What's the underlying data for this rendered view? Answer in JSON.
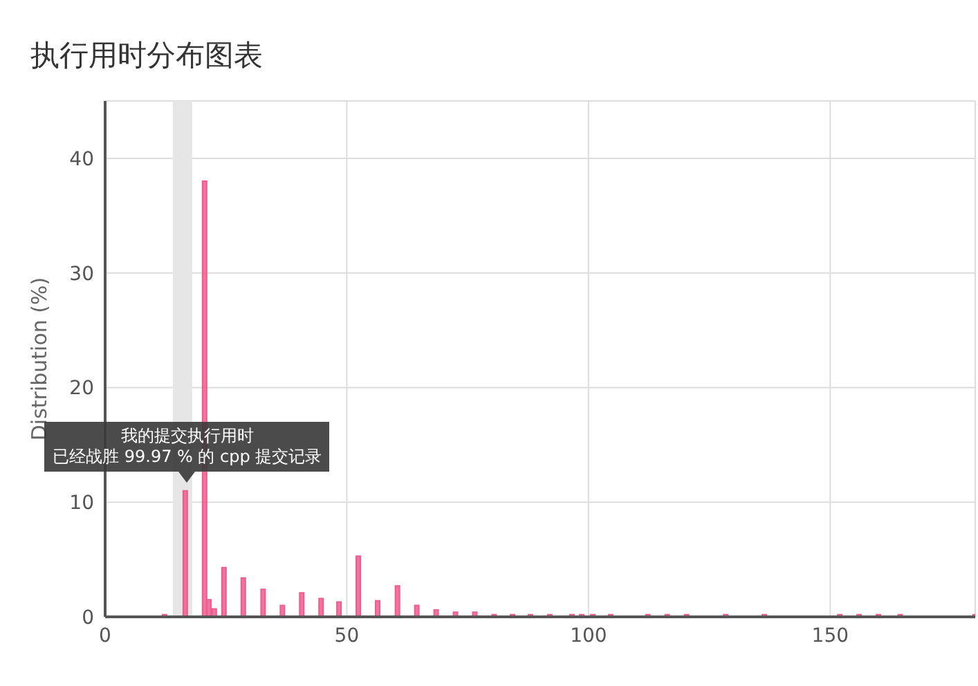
{
  "chart_data": {
    "type": "bar",
    "title": "执行用时分布图表",
    "ylabel": "Distribution (%)",
    "x": [
      12.3,
      16.6,
      20.6,
      21.5,
      22.6,
      24.6,
      28.6,
      32.7,
      36.7,
      40.7,
      44.7,
      48.4,
      52.4,
      56.4,
      60.5,
      64.5,
      68.5,
      72.5,
      76.5,
      80.5,
      84.3,
      88,
      92,
      96.6,
      98.6,
      100.9,
      104.6,
      112.3,
      116.3,
      120.3,
      128.4,
      136.4,
      152,
      156,
      160,
      164.5,
      180
    ],
    "values": [
      0.2,
      11,
      38,
      1.5,
      0.7,
      4.3,
      3.4,
      2.4,
      1,
      2.1,
      1.6,
      1.3,
      5.3,
      1.4,
      2.7,
      1,
      0.6,
      0.4,
      0.4,
      0.2,
      0.2,
      0.2,
      0.2,
      0.2,
      0.2,
      0.2,
      0.2,
      0.2,
      0.2,
      0.2,
      0.2,
      0.2,
      0.2,
      0.2,
      0.2,
      0.2,
      0.2
    ],
    "color": "#ec5c8d",
    "xlim": [
      0,
      180
    ],
    "xticks": [
      0,
      50,
      100,
      150
    ],
    "ylim": [
      0,
      45
    ],
    "yticks": [
      0,
      10,
      20,
      30,
      40
    ],
    "grid": true,
    "bands": [
      {
        "axis": "x",
        "from": 14,
        "to": 18,
        "color": "#e6e6e6"
      }
    ],
    "annotations": [
      {
        "text": "我的提交执行用时",
        "x": 17
      },
      "已经战胜 99.97 % 的 cpp 提交记录"
    ]
  }
}
